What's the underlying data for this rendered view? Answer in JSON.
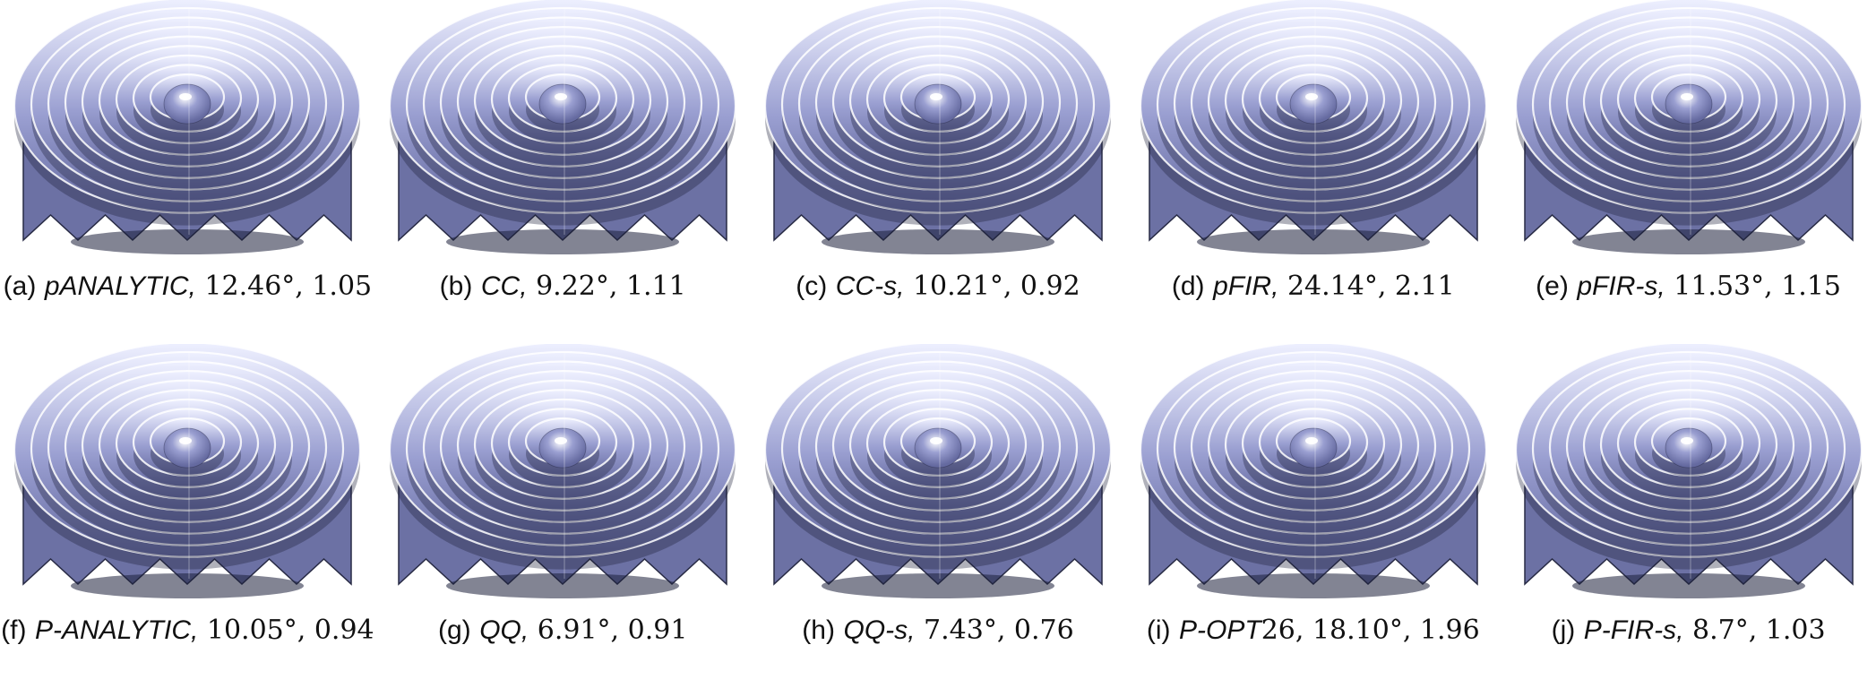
{
  "surface_colors": {
    "base": "#9a9fd1",
    "light": "#eef0ff",
    "dark": "#1c1f3a",
    "mid": "#656aa0"
  },
  "panels": [
    {
      "letter": "(a)",
      "method": "pANALYTIC,",
      "values": "12.46°, 1.05"
    },
    {
      "letter": "(b)",
      "method": "CC,",
      "values": "9.22°, 1.11"
    },
    {
      "letter": "(c)",
      "method": "CC-s,",
      "values": "10.21°, 0.92"
    },
    {
      "letter": "(d)",
      "method": "pFIR,",
      "values": "24.14°, 2.11"
    },
    {
      "letter": "(e)",
      "method": "pFIR-s,",
      "values": "11.53°, 1.15"
    },
    {
      "letter": "(f)",
      "method": "P-ANALYTIC,",
      "values": "10.05°, 0.94"
    },
    {
      "letter": "(g)",
      "method": "QQ,",
      "values": "6.91°, 0.91"
    },
    {
      "letter": "(h)",
      "method": "QQ-s,",
      "values": "7.43°, 0.76"
    },
    {
      "letter": "(i)",
      "method": "P-OPT",
      "values": "26, 18.10°, 1.96"
    },
    {
      "letter": "(j)",
      "method": "P-FIR-s,",
      "values": "8.7°, 1.03"
    }
  ]
}
